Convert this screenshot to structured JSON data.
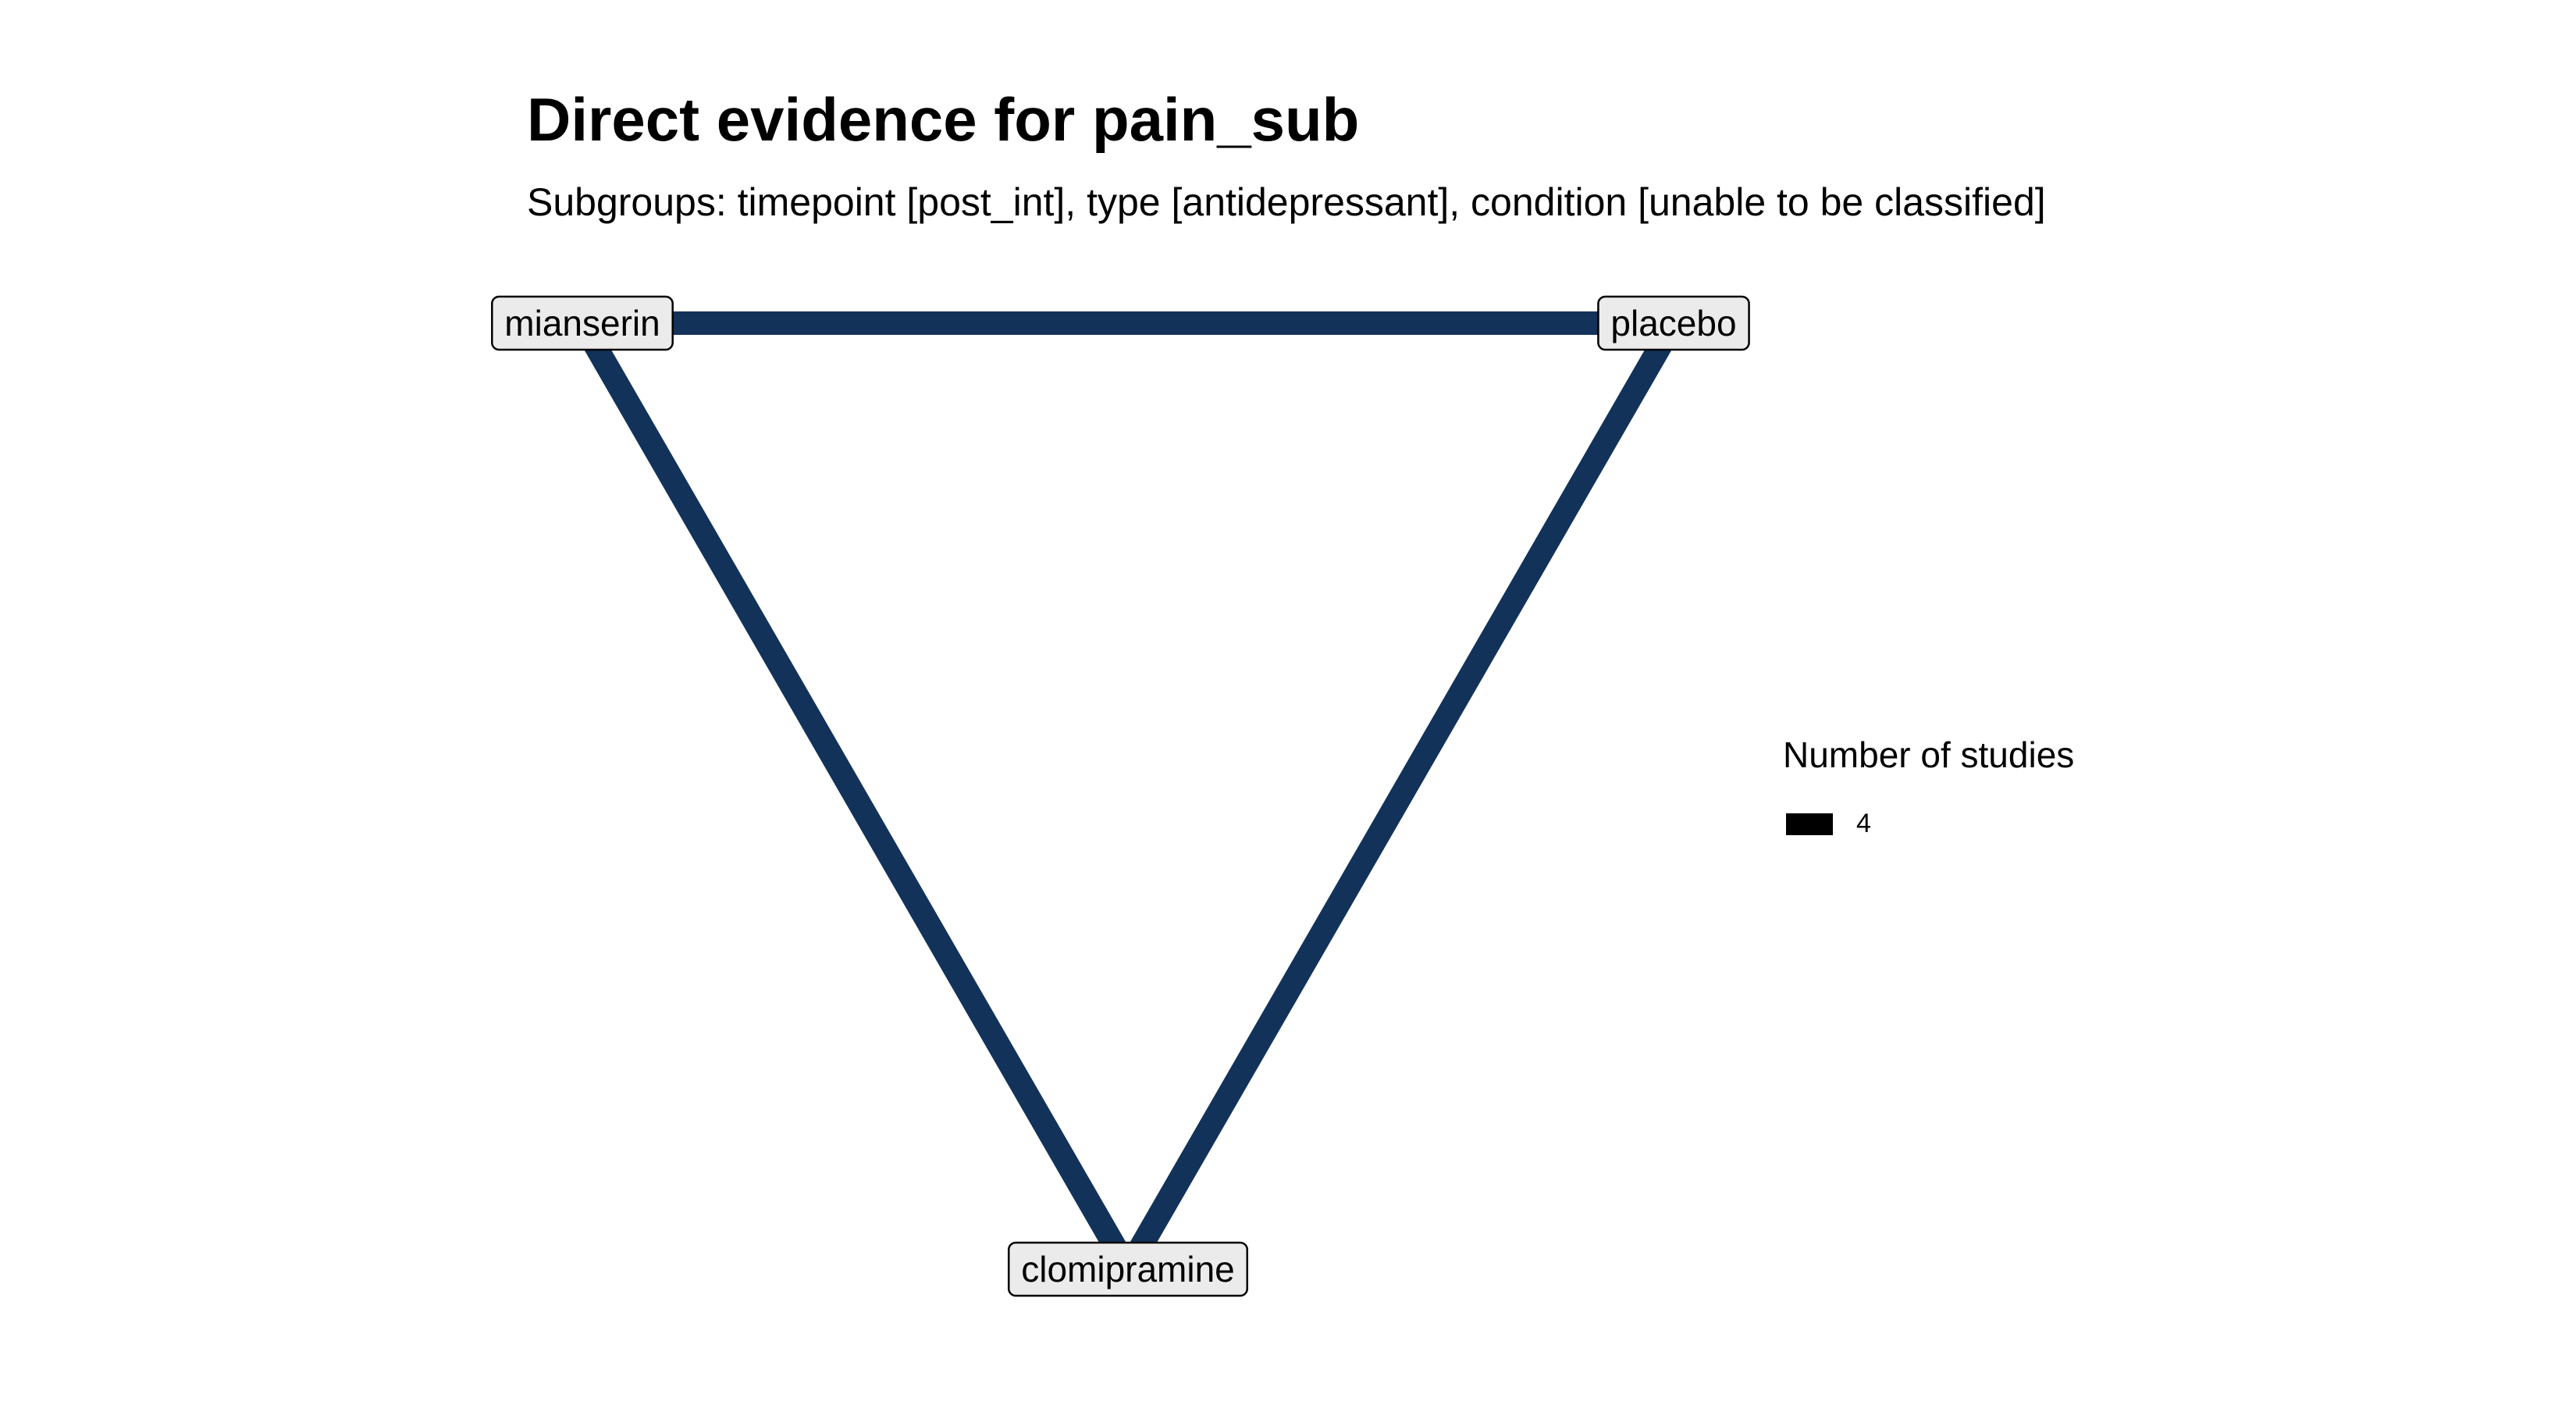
{
  "title": "Direct evidence for pain_sub",
  "subtitle": "Subgroups: timepoint [post_int], type [antidepressant], condition [unable to be classified]",
  "network": {
    "nodes": [
      {
        "id": "mianserin",
        "label": "mianserin"
      },
      {
        "id": "placebo",
        "label": "placebo"
      },
      {
        "id": "clomipramine",
        "label": "clomipramine"
      }
    ],
    "edges": [
      {
        "from": "mianserin",
        "to": "placebo",
        "studies": 4
      },
      {
        "from": "mianserin",
        "to": "clomipramine",
        "studies": 4
      },
      {
        "from": "placebo",
        "to": "clomipramine",
        "studies": 4
      }
    ],
    "edge_color": "#12325a",
    "node_fill": "#ebebeb",
    "node_border": "#000000"
  },
  "legend": {
    "title": "Number of studies",
    "items": [
      {
        "label": "4",
        "color": "#000000"
      }
    ]
  }
}
